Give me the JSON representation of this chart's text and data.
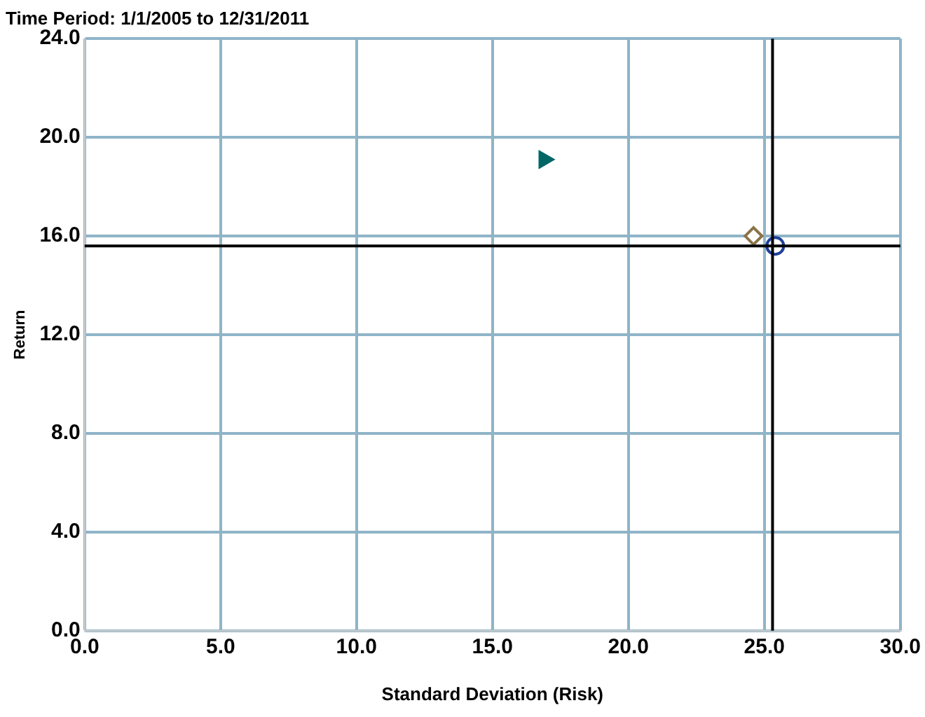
{
  "chart_data": {
    "type": "scatter",
    "title": "Time Period: 1/1/2005 to 12/31/2011",
    "xlabel": "Standard Deviation (Risk)",
    "ylabel": "Return",
    "series": [
      {
        "color": "#006666",
        "marker": "triangle",
        "x": [
          16.9
        ],
        "values": [
          19.1
        ]
      },
      {
        "color": "#8b7347",
        "marker": "diamond",
        "x": [
          24.6
        ],
        "values": [
          16.0
        ]
      },
      {
        "color": "#1f3f99",
        "marker": "circle",
        "x": [
          25.4
        ],
        "values": [
          15.6
        ]
      }
    ],
    "xlim": [
      0,
      30
    ],
    "xticks": [
      {
        "value": 0,
        "label": "0.0"
      },
      {
        "value": 5,
        "label": "5.0"
      },
      {
        "value": 10,
        "label": "10.0"
      },
      {
        "value": 15,
        "label": "15.0"
      },
      {
        "value": 20,
        "label": "20.0"
      },
      {
        "value": 25,
        "label": "25.0"
      },
      {
        "value": 30,
        "label": "30.0"
      }
    ],
    "ylim": [
      0,
      24
    ],
    "yticks": [
      {
        "value": 0,
        "label": "0.0"
      },
      {
        "value": 4,
        "label": "4.0"
      },
      {
        "value": 8,
        "label": "8.0"
      },
      {
        "value": 12,
        "label": "12.0"
      },
      {
        "value": 16,
        "label": "16.0"
      },
      {
        "value": 20,
        "label": "20.0"
      },
      {
        "value": 24,
        "label": "24.0"
      }
    ],
    "ref_lines": [
      {
        "axis": "x",
        "value": 25.3,
        "color": "#000000"
      },
      {
        "axis": "y",
        "value": 15.6,
        "color": "#000000"
      }
    ],
    "grid": true,
    "legend": false
  }
}
